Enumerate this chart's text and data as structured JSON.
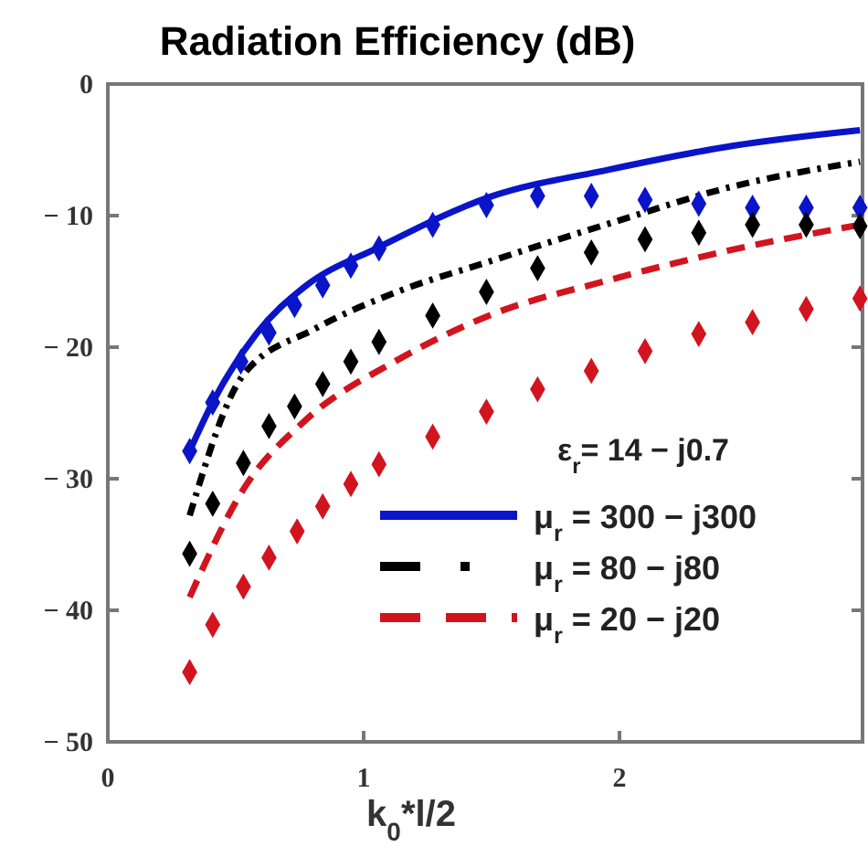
{
  "chart_data": {
    "type": "line",
    "title": "Radiation Efficiency (dB)",
    "xlabel": "k$_{0}$*l/2",
    "xlim": [
      0,
      2.95
    ],
    "ylim": [
      -50,
      0
    ],
    "xticks": [
      0,
      1,
      2
    ],
    "yticks": [
      {
        "value": -50,
        "label": "− 50"
      },
      {
        "value": -40,
        "label": "− 40"
      },
      {
        "value": -30,
        "label": "− 30"
      },
      {
        "value": -20,
        "label": "− 20"
      },
      {
        "value": -10,
        "label": "− 10"
      },
      0
    ],
    "grid": false,
    "legend": "bottom right",
    "annotations": [
      "ε$_{r}$= 14 − j0.7"
    ],
    "series": [
      {
        "name": "μ$_{r}$ = 300 − j300",
        "color": "#0a14c8",
        "line_style": "solid",
        "marker": "none",
        "x": [
          0.32,
          0.41,
          0.58,
          0.77,
          1.06,
          1.49,
          1.96,
          2.44,
          2.94
        ],
        "values": [
          -27.9,
          -24.2,
          -19,
          -15.4,
          -12.4,
          -8.6,
          -6.5,
          -4.7,
          -3.5
        ]
      },
      {
        "name": "μ$_{r}$ = 80 − j80",
        "color": "#000000",
        "line_style": "dotted",
        "marker": "none",
        "x": [
          0.32,
          0.53,
          0.81,
          1.13,
          1.49,
          1.96,
          2.44,
          2.94
        ],
        "values": [
          -32.8,
          -22.1,
          -18.6,
          -15.8,
          -13.5,
          -10.6,
          -7.8,
          -5.9
        ]
      },
      {
        "name": "μ$_{r}$ = 20 − j20",
        "color": "#d2141e",
        "line_style": "dashed",
        "marker": "none",
        "x": [
          0.32,
          0.53,
          0.77,
          1.13,
          1.49,
          1.96,
          2.44,
          2.94
        ],
        "values": [
          -39,
          -30.8,
          -25.6,
          -21,
          -17.6,
          -14.9,
          -12.6,
          -10.7
        ]
      },
      {
        "type": "scatter",
        "color": "#0a14c8",
        "marker": "diamond",
        "x": [
          0.32,
          0.41,
          0.52,
          0.63,
          0.73,
          0.84,
          0.95,
          1.06,
          1.27,
          1.48,
          1.68,
          1.89,
          2.1,
          2.31,
          2.52,
          2.73,
          2.94
        ],
        "values": [
          -27.9,
          -24.2,
          -21.1,
          -18.9,
          -16.8,
          -15.3,
          -13.8,
          -12.5,
          -10.7,
          -9.2,
          -8.5,
          -8.5,
          -8.8,
          -9.1,
          -9.4,
          -9.4,
          -9.4
        ]
      },
      {
        "type": "scatter",
        "color": "#000000",
        "marker": "diamond",
        "x": [
          0.32,
          0.41,
          0.53,
          0.63,
          0.73,
          0.84,
          0.95,
          1.06,
          1.27,
          1.48,
          1.68,
          1.89,
          2.1,
          2.31,
          2.52,
          2.73,
          2.94
        ],
        "values": [
          -35.7,
          -31.9,
          -28.8,
          -26,
          -24.5,
          -22.8,
          -21.1,
          -19.6,
          -17.6,
          -15.8,
          -14,
          -12.8,
          -11.8,
          -11.3,
          -10.7,
          -10.7,
          -10.8
        ]
      },
      {
        "type": "scatter",
        "color": "#d2141e",
        "marker": "diamond",
        "x": [
          0.32,
          0.41,
          0.53,
          0.63,
          0.74,
          0.84,
          0.95,
          1.06,
          1.27,
          1.48,
          1.68,
          1.89,
          2.1,
          2.31,
          2.52,
          2.73,
          2.94
        ],
        "values": [
          -44.7,
          -41.1,
          -38.2,
          -36,
          -34,
          -32.1,
          -30.4,
          -28.9,
          -26.8,
          -24.9,
          -23.2,
          -21.8,
          -20.3,
          -19,
          -18.1,
          -17.1,
          -16.3
        ]
      }
    ]
  }
}
